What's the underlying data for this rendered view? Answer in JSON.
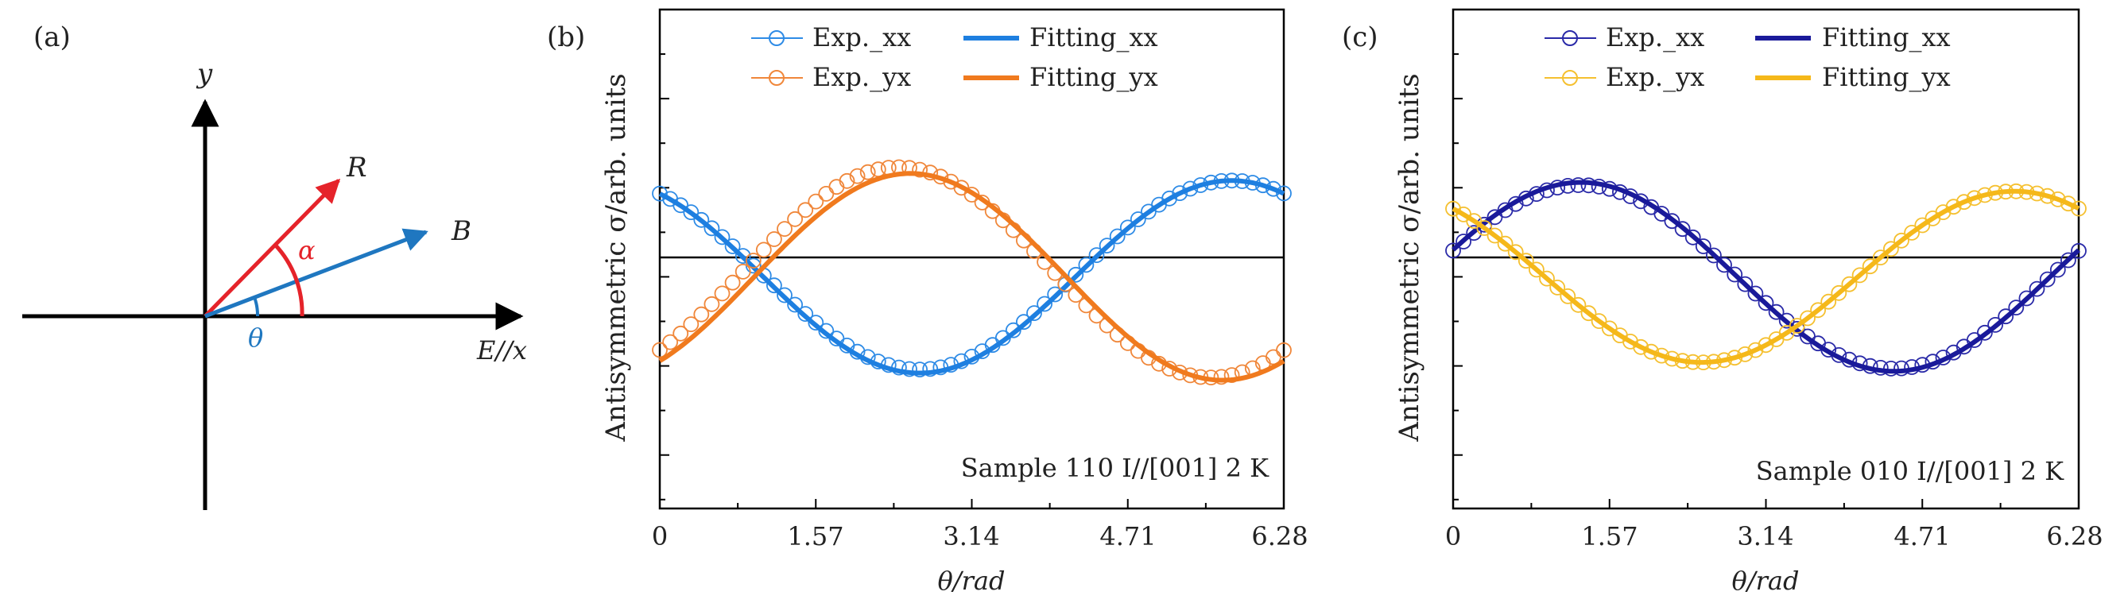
{
  "figure": {
    "panel_a": {
      "label": "(a)",
      "y_axis_label": "y",
      "x_axis_label": "E//x",
      "vector_R_label": "R",
      "vector_B_label": "B",
      "angle_alpha_label": "α",
      "angle_theta_label": "θ",
      "colors": {
        "R": "#e5232a",
        "B": "#1f77c0",
        "axes": "#000000"
      }
    }
  },
  "chart_data": [
    {
      "type": "line",
      "panel_label": "(b)",
      "ylabel": "Antisymmetric σ/arb. units",
      "xlabel": "θ/rad",
      "xlim": [
        0,
        6.28
      ],
      "ylim": [
        -2.6,
        3.0
      ],
      "x_ticks": [
        "0",
        "1.57",
        "3.14",
        "4.71",
        "6.28"
      ],
      "x_tick_values": [
        0,
        1.57,
        3.14,
        4.71,
        6.28
      ],
      "annotation": "Sample 110 I//[001] 2 K",
      "legend": [
        {
          "label": "Exp._xx",
          "style": "circle",
          "color": "#2e8be6"
        },
        {
          "label": "Fitting_xx",
          "style": "line",
          "color": "#1e7fe0"
        },
        {
          "label": "Exp._yx",
          "style": "circle",
          "color": "#f0873a"
        },
        {
          "label": "Fitting_yx",
          "style": "line",
          "color": "#f07a1e"
        }
      ],
      "series": [
        {
          "name": "Exp._xx",
          "kind": "scatter",
          "color": "#2e8be6",
          "amplitude": 1.06,
          "phase": 2.1,
          "offset": 0.02,
          "n_points": 61
        },
        {
          "name": "Fitting_xx",
          "kind": "line",
          "color": "#1e7fe0",
          "amplitude": 1.08,
          "phase": 2.1,
          "offset": 0.0,
          "n_points": 200
        },
        {
          "name": "Exp._yx",
          "kind": "scatter",
          "color": "#f0873a",
          "amplitude": 1.18,
          "phase": -0.83,
          "offset": 0.05,
          "n_points": 61
        },
        {
          "name": "Fitting_yx",
          "kind": "line",
          "color": "#f07a1e",
          "amplitude": 1.16,
          "phase": -0.95,
          "offset": 0.0,
          "n_points": 200
        }
      ]
    },
    {
      "type": "line",
      "panel_label": "(c)",
      "ylabel": "Antisymmetric σ/arb. units",
      "xlabel": "θ/rad",
      "xlim": [
        0,
        6.28
      ],
      "ylim": [
        -2.6,
        3.0
      ],
      "x_ticks": [
        "0",
        "1.57",
        "3.14",
        "4.71",
        "6.28"
      ],
      "x_tick_values": [
        0,
        1.57,
        3.14,
        4.71,
        6.28
      ],
      "annotation": "Sample 010 I//[001] 2 K",
      "legend": [
        {
          "label": "Exp._xx",
          "style": "circle",
          "color": "#2a2aa8"
        },
        {
          "label": "Fitting_xx",
          "style": "line",
          "color": "#1a1a9a"
        },
        {
          "label": "Exp._yx",
          "style": "circle",
          "color": "#f5c030"
        },
        {
          "label": "Fitting_yx",
          "style": "line",
          "color": "#f5b81a"
        }
      ],
      "series": [
        {
          "name": "Exp._xx",
          "kind": "scatter",
          "color": "#2a2aa8",
          "amplitude": 1.03,
          "phase": 0.29,
          "offset": 0.0,
          "n_points": 61
        },
        {
          "name": "Fitting_xx",
          "kind": "line",
          "color": "#1a1a9a",
          "amplitude": 1.06,
          "phase": 0.29,
          "offset": 0.0,
          "n_points": 200
        },
        {
          "name": "Exp._yx",
          "kind": "scatter",
          "color": "#f5c030",
          "amplitude": 0.96,
          "phase": 2.22,
          "offset": 0.0,
          "n_points": 61
        },
        {
          "name": "Fitting_yx",
          "kind": "line",
          "color": "#f5b81a",
          "amplitude": 0.96,
          "phase": 2.22,
          "offset": 0.0,
          "n_points": 200
        }
      ]
    }
  ]
}
